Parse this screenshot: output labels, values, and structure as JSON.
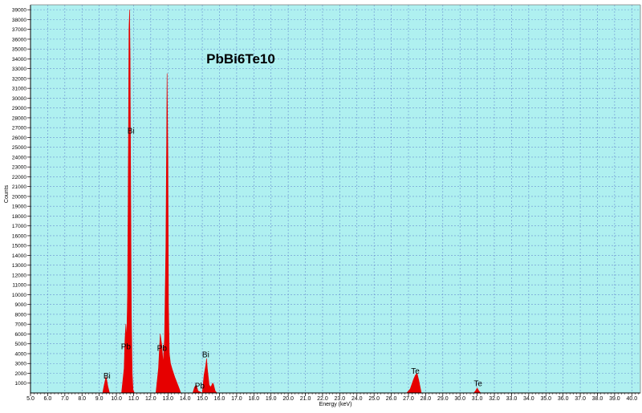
{
  "chart_data": {
    "type": "area",
    "title": "PbBi6Te10",
    "xlabel": "Energy (keV)",
    "ylabel": "Counts",
    "xlim": [
      5.0,
      40.5
    ],
    "ylim": [
      0,
      39500
    ],
    "grid": true,
    "colors": {
      "plot_bg": "#aff0f0",
      "fill": "#e60000",
      "grid": "#6a8fd0",
      "axis": "#000000"
    },
    "x_ticks": [
      "5.0",
      "6.0",
      "7.0",
      "8.0",
      "9.0",
      "10.0",
      "11.0",
      "12.0",
      "13.0",
      "14.0",
      "15.0",
      "16.0",
      "17.0",
      "18.0",
      "19.0",
      "20.0",
      "21.0",
      "22.0",
      "23.0",
      "24.0",
      "25.0",
      "26.0",
      "27.0",
      "28.0",
      "29.0",
      "30.0",
      "31.0",
      "32.0",
      "33.0",
      "34.0",
      "35.0",
      "36.0",
      "37.0",
      "38.0",
      "39.0",
      "40.0"
    ],
    "y_ticks": [
      "1000",
      "2000",
      "3000",
      "4000",
      "5000",
      "6000",
      "7000",
      "8000",
      "9000",
      "10000",
      "11000",
      "12000",
      "13000",
      "14000",
      "15000",
      "16000",
      "17000",
      "18000",
      "19000",
      "20000",
      "21000",
      "22000",
      "23000",
      "24000",
      "25000",
      "26000",
      "27000",
      "28000",
      "29000",
      "30000",
      "31000",
      "32000",
      "33000",
      "34000",
      "35000",
      "36000",
      "37000",
      "38000",
      "39000"
    ],
    "series": [
      {
        "x": [
          5.0,
          9.2,
          9.3,
          9.4,
          9.5,
          9.6,
          9.8,
          10.3,
          10.45,
          10.5,
          10.55,
          10.6,
          10.65,
          10.7,
          10.73,
          10.77,
          10.8,
          10.83,
          10.87,
          10.92,
          10.97,
          11.05,
          12.3,
          12.45,
          12.55,
          12.65,
          12.72,
          12.8,
          12.88,
          12.95,
          13.0,
          13.03,
          13.08,
          13.15,
          13.25,
          13.4,
          13.6,
          13.75,
          14.45,
          14.55,
          14.65,
          14.75,
          15.0,
          15.1,
          15.2,
          15.25,
          15.3,
          15.4,
          15.5,
          15.6,
          15.65,
          15.75,
          15.85,
          26.9,
          27.1,
          27.3,
          27.4,
          27.5,
          27.6,
          27.75,
          30.8,
          30.9,
          31.0,
          31.1,
          31.2,
          40.5
        ],
        "y": [
          0,
          0,
          900,
          1700,
          700,
          0,
          0,
          0,
          2500,
          5500,
          7000,
          5500,
          10000,
          25000,
          37000,
          39000,
          34000,
          22000,
          8000,
          2000,
          300,
          0,
          0,
          2500,
          6000,
          4800,
          3000,
          5500,
          15000,
          32500,
          24000,
          9000,
          4000,
          3000,
          2400,
          1600,
          700,
          0,
          0,
          600,
          800,
          200,
          0,
          1800,
          2800,
          3500,
          2400,
          800,
          600,
          1000,
          900,
          200,
          0,
          0,
          400,
          1400,
          1800,
          2000,
          1300,
          0,
          0,
          200,
          500,
          200,
          0,
          0
        ]
      }
    ],
    "annotations": [
      {
        "text": "Bi",
        "x": 9.45,
        "y": 1450
      },
      {
        "text": "Bi",
        "x": 10.85,
        "y": 26400
      },
      {
        "text": "Pb",
        "x": 10.55,
        "y": 4450
      },
      {
        "text": "Pb",
        "x": 12.65,
        "y": 4300
      },
      {
        "text": "Bi",
        "x": 15.2,
        "y": 3650
      },
      {
        "text": "Pb",
        "x": 14.85,
        "y": 450
      },
      {
        "text": "Te",
        "x": 27.4,
        "y": 1950
      },
      {
        "text": "Te",
        "x": 31.05,
        "y": 700
      }
    ]
  }
}
